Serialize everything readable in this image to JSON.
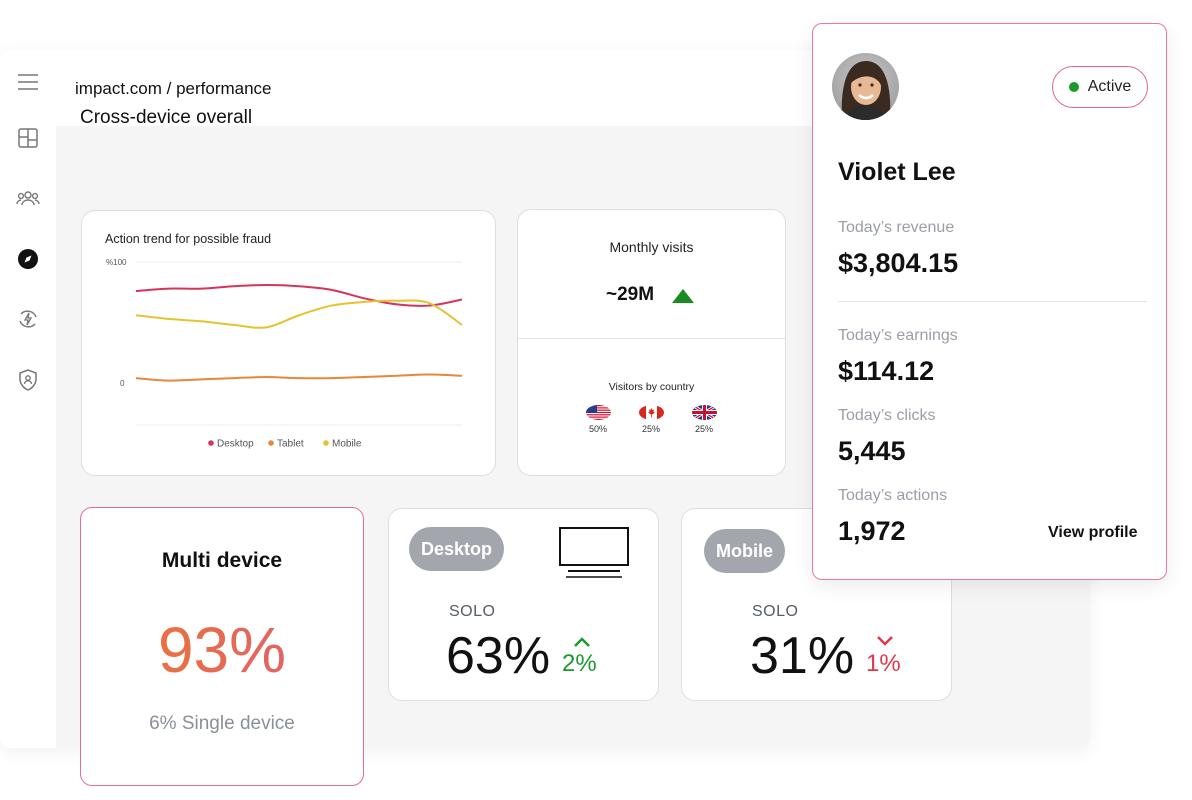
{
  "header": {
    "breadcrumb": "impact.com / performance"
  },
  "sidebar": {
    "icons": [
      "menu-icon",
      "layout-icon",
      "users-icon",
      "compass-icon",
      "refresh-bolt-icon",
      "shield-user-icon"
    ]
  },
  "section": {
    "title": "Cross-device overall"
  },
  "trend_chart": {
    "title": "Action trend for possible fraud",
    "chart_data": {
      "type": "line",
      "title": "Action trend for possible fraud",
      "y_tick_labels": [
        "%100",
        "0"
      ],
      "x": [
        0,
        1,
        2,
        3,
        4,
        5,
        6,
        7,
        8,
        9,
        10
      ],
      "series": [
        {
          "name": "Desktop",
          "color": "#d6335f",
          "values": [
            76,
            78,
            78,
            80,
            81,
            80,
            77,
            70,
            65,
            64,
            69
          ]
        },
        {
          "name": "Tablet",
          "color": "#e8873a",
          "values": [
            4,
            2,
            3,
            4,
            5,
            4,
            4,
            5,
            6,
            7,
            6
          ]
        },
        {
          "name": "Mobile",
          "color": "#e6c230",
          "values": [
            56,
            53,
            51,
            48,
            46,
            56,
            64,
            67,
            68,
            66,
            48
          ]
        }
      ],
      "legend_position": "bottom",
      "grid": true
    },
    "legend": [
      "Desktop",
      "Tablet",
      "Mobile"
    ],
    "y_top": "%100",
    "y_zero": "0"
  },
  "visits": {
    "title": "Monthly visits",
    "value": "~29M",
    "trend": "up",
    "country_title": "Visitors by country",
    "countries": [
      {
        "code": "us-flag-icon",
        "pct": "50%"
      },
      {
        "code": "canada-flag-icon",
        "pct": "25%"
      },
      {
        "code": "uk-flag-icon",
        "pct": "25%"
      }
    ]
  },
  "multi_device": {
    "title": "Multi device",
    "value": "93%",
    "sub": "6% Single device",
    "gradient": [
      "#ec7a2c",
      "#e05a7a"
    ]
  },
  "desktop": {
    "pill": "Desktop",
    "solo_label": "SOLO",
    "value": "63%",
    "trend": "2%",
    "trend_color": "#1a9a2a",
    "direction": "up"
  },
  "mobile": {
    "pill": "Mobile",
    "solo_label": "SOLO",
    "value": "31%",
    "trend": "1%",
    "trend_color": "#e0384a",
    "direction": "down"
  },
  "profile": {
    "name": "Violet Lee",
    "status": "Active",
    "status_color": "#1a9a2a",
    "revenue_label": "Today’s revenue",
    "revenue": "$3,804.15",
    "earnings_label": "Today’s earnings",
    "earnings": "$114.12",
    "clicks_label": "Today’s clicks",
    "clicks": "5,445",
    "actions_label": "Today’s actions",
    "actions": "1,972",
    "view_profile": "View profile"
  }
}
